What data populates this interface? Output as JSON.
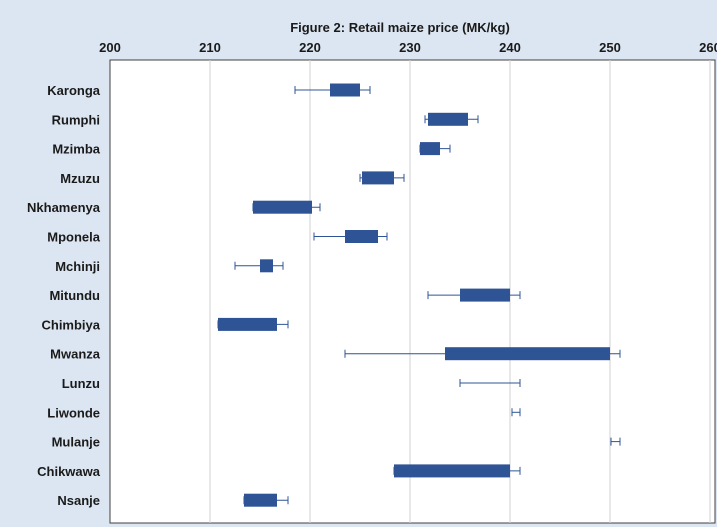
{
  "chart_data": {
    "type": "box",
    "title": "Figure 2: Retail maize price (MK/kg)",
    "xlim": [
      200,
      260
    ],
    "x_ticks": [
      "200",
      "210",
      "220",
      "230",
      "240",
      "250",
      "260"
    ],
    "grid": "vertical",
    "categories": [
      "Karonga",
      "Rumphi",
      "Mzimba",
      "Mzuzu",
      "Nkhamenya",
      "Mponela",
      "Mchinji",
      "Mitundu",
      "Chimbiya",
      "Mwanza",
      "Lunzu",
      "Liwonde",
      "Mulanje",
      "Chikwawa",
      "Nsanje"
    ],
    "series": [
      {
        "category": "Karonga",
        "min": 218.5,
        "q1": 222.0,
        "q3": 225.0,
        "max": 226.0
      },
      {
        "category": "Rumphi",
        "min": 231.5,
        "q1": 231.8,
        "q3": 235.8,
        "max": 236.8
      },
      {
        "category": "Mzimba",
        "min": 231.0,
        "q1": 231.0,
        "q3": 233.0,
        "max": 234.0
      },
      {
        "category": "Mzuzu",
        "min": 225.0,
        "q1": 225.2,
        "q3": 228.4,
        "max": 229.4
      },
      {
        "category": "Nkhamenya",
        "min": 214.3,
        "q1": 214.3,
        "q3": 220.2,
        "max": 221.0
      },
      {
        "category": "Mponela",
        "min": 220.4,
        "q1": 223.5,
        "q3": 226.8,
        "max": 227.7
      },
      {
        "category": "Mchinji",
        "min": 212.5,
        "q1": 215.0,
        "q3": 216.3,
        "max": 217.3
      },
      {
        "category": "Mitundu",
        "min": 231.8,
        "q1": 235.0,
        "q3": 240.0,
        "max": 241.0
      },
      {
        "category": "Chimbiya",
        "min": 210.8,
        "q1": 210.8,
        "q3": 216.7,
        "max": 217.8
      },
      {
        "category": "Mwanza",
        "min": 223.5,
        "q1": 233.5,
        "q3": 250.0,
        "max": 251.0
      },
      {
        "category": "Lunzu",
        "min": 235.0,
        "max": 241.0
      },
      {
        "category": "Liwonde",
        "min": 240.2,
        "max": 241.0
      },
      {
        "category": "Mulanje",
        "min": 250.1,
        "max": 251.0
      },
      {
        "category": "Chikwawa",
        "min": 228.4,
        "q1": 228.4,
        "q3": 240.0,
        "max": 241.0
      },
      {
        "category": "Nsanje",
        "min": 213.4,
        "q1": 213.4,
        "q3": 216.7,
        "max": 217.8
      }
    ]
  },
  "colors": {
    "box": "#2f5496",
    "whisker": "#2f5496",
    "plot_bg": "#ffffff",
    "chart_bg": "#dce6f2",
    "grid": "#d0d0d0",
    "axis": "#404040"
  }
}
